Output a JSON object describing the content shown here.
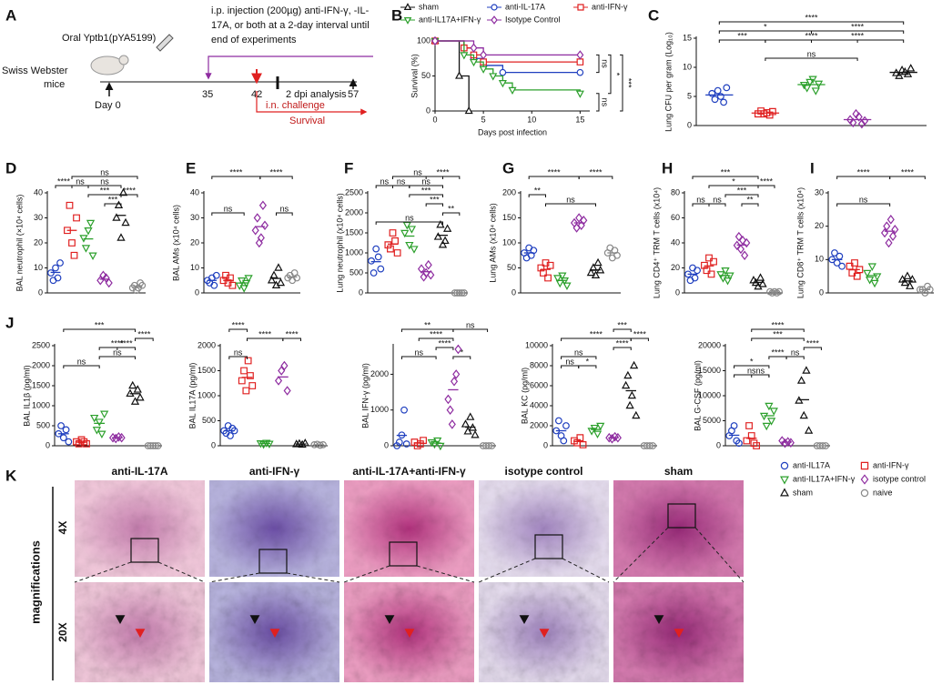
{
  "schematic": {
    "panel": "A",
    "oral": "Oral Yptb1(pYA5199)",
    "strain": "Swiss Webster",
    "mice": "mice",
    "day0": "Day 0",
    "injection": [
      "i.p. injection (200µg) anti-IFN-γ, -IL-",
      "17A, or both at a 2-day interval until",
      "end of experiments"
    ],
    "d35": "35",
    "d42": "42",
    "analysis": "2 dpi analysis",
    "d57": "57",
    "challenge": "i.n. challenge",
    "survival": "Survival"
  },
  "legend": [
    {
      "name": "anti-IL17A",
      "color": "#1f3fbf",
      "marker": "circle"
    },
    {
      "name": "anti-IFN-γ",
      "color": "#e02020",
      "marker": "square"
    },
    {
      "name": "anti-IL17A+IFN-γ",
      "color": "#2ca02c",
      "marker": "triangle-down"
    },
    {
      "name": "isotype control",
      "color": "#8e2ca0",
      "marker": "diamond"
    },
    {
      "name": "sham",
      "color": "#111111",
      "marker": "triangle-up"
    },
    {
      "name": "naive",
      "color": "#888888",
      "marker": "circle"
    }
  ],
  "chart_data": [
    {
      "type": "survival",
      "panel": "B",
      "xlabel": "Days post infection",
      "ylabel": "Survival (%)",
      "xlim": [
        0,
        16
      ],
      "xticks": [
        0,
        5,
        10,
        15
      ],
      "ylim": [
        0,
        100
      ],
      "yticks": [
        0,
        50,
        100
      ],
      "step": true,
      "series": [
        {
          "name": "sham",
          "color": "#111111",
          "marker": "triangle-up",
          "x": [
            0,
            2.5,
            3.5
          ],
          "values": [
            100,
            50,
            0
          ]
        },
        {
          "name": "anti-IL-17A",
          "color": "#1f3fbf",
          "marker": "circle",
          "x": [
            0,
            3,
            4,
            5,
            7,
            15
          ],
          "values": [
            100,
            90,
            75,
            65,
            55,
            55
          ]
        },
        {
          "name": "anti-IFN-γ",
          "color": "#e02020",
          "marker": "square",
          "x": [
            0,
            3,
            4,
            5,
            15
          ],
          "values": [
            100,
            90,
            80,
            70,
            70
          ]
        },
        {
          "name": "anti-IL17A+IFN-γ",
          "color": "#2ca02c",
          "marker": "triangle-down",
          "x": [
            0,
            3,
            4,
            5,
            6,
            7,
            8,
            15
          ],
          "values": [
            100,
            80,
            70,
            60,
            50,
            40,
            30,
            25
          ]
        },
        {
          "name": "Isotype Control",
          "color": "#8e2ca0",
          "marker": "diamond",
          "x": [
            0,
            4,
            5,
            15
          ],
          "values": [
            100,
            90,
            80,
            80
          ]
        }
      ],
      "annotations": [
        "ns",
        "*",
        "***",
        "ns"
      ]
    },
    {
      "type": "dotplot",
      "panel": "C",
      "ylabel": "Lung CFU per gram (Log₁₀)",
      "ylim": [
        0,
        15
      ],
      "yticks": [
        0,
        5,
        10,
        15
      ],
      "series": [
        {
          "values": [
            5.5,
            4.5,
            6,
            5,
            4,
            6.5
          ]
        },
        {
          "values": [
            2,
            2.5,
            2,
            2.2,
            1.8,
            2.4
          ]
        },
        {
          "values": [
            7,
            6.5,
            7.5,
            8,
            6,
            7.2
          ]
        },
        {
          "values": [
            1,
            0.5,
            2,
            1.5,
            0.3,
            0.8
          ]
        },
        {
          "values": [
            9,
            8.5,
            9.5,
            9.2,
            8.8,
            9.8
          ]
        }
      ],
      "annotations": [
        "****",
        "*",
        "****",
        "****",
        "***",
        "****",
        "ns"
      ]
    },
    {
      "type": "dotplot",
      "panel": "D",
      "ylabel": "BAL neutrophil (×10⁴ cells)",
      "ylim": [
        0,
        40
      ],
      "yticks": [
        0,
        10,
        20,
        30,
        40
      ],
      "series": [
        {
          "values": [
            8,
            5,
            10,
            6,
            12
          ]
        },
        {
          "values": [
            25,
            35,
            20,
            15,
            30
          ]
        },
        {
          "values": [
            22,
            18,
            25,
            28,
            15
          ]
        },
        {
          "values": [
            5,
            7,
            6,
            4
          ]
        },
        {
          "values": [
            30,
            35,
            22,
            40,
            28
          ]
        },
        {
          "values": [
            2,
            3,
            1,
            2,
            4,
            3
          ]
        }
      ],
      "annotations": [
        "ns",
        "****",
        "ns",
        "ns",
        "***",
        "***",
        "****"
      ]
    },
    {
      "type": "dotplot",
      "panel": "E",
      "ylabel": "BAL AMs (x10⁴ cells)",
      "ylim": [
        0,
        40
      ],
      "yticks": [
        0,
        10,
        20,
        30,
        40
      ],
      "series": [
        {
          "values": [
            5,
            4,
            6,
            3,
            7
          ]
        },
        {
          "values": [
            5,
            7,
            4,
            6,
            3
          ]
        },
        {
          "values": [
            3,
            5,
            2,
            4,
            6
          ]
        },
        {
          "values": [
            25,
            30,
            20,
            22,
            35,
            27
          ]
        },
        {
          "values": [
            5,
            7,
            3,
            10,
            4
          ]
        },
        {
          "values": [
            6,
            7,
            5,
            8,
            6
          ]
        }
      ],
      "annotations": [
        "****",
        "****",
        "ns",
        "ns"
      ]
    },
    {
      "type": "dotplot",
      "panel": "F",
      "ylabel": "Lung neutrophil (x10⁴ cells)",
      "ylim": [
        0,
        2500
      ],
      "yticks": [
        0,
        500,
        1000,
        1500,
        2000,
        2500
      ],
      "series": [
        {
          "values": [
            800,
            500,
            1100,
            900,
            600
          ]
        },
        {
          "values": [
            1200,
            1100,
            1500,
            1300,
            1000
          ]
        },
        {
          "values": [
            1500,
            1700,
            1200,
            1600,
            1100
          ]
        },
        {
          "values": [
            600,
            400,
            500,
            700,
            450
          ]
        },
        {
          "values": [
            1400,
            1700,
            1200,
            1300,
            1600
          ]
        },
        {
          "values": [
            0,
            0,
            0,
            0,
            0
          ]
        }
      ],
      "annotations": [
        "ns",
        "ns",
        "ns",
        "****",
        "ns",
        "***",
        "***",
        "**",
        "ns"
      ]
    },
    {
      "type": "dotplot",
      "panel": "G",
      "ylabel": "Lung AMs (x10⁴ cells)",
      "ylim": [
        0,
        200
      ],
      "yticks": [
        0,
        50,
        100,
        150,
        200
      ],
      "series": [
        {
          "values": [
            80,
            70,
            90,
            75,
            85
          ]
        },
        {
          "values": [
            50,
            40,
            60,
            30,
            55
          ]
        },
        {
          "values": [
            30,
            20,
            35,
            25,
            15
          ]
        },
        {
          "values": [
            140,
            130,
            150,
            135,
            145
          ]
        },
        {
          "values": [
            40,
            50,
            35,
            60,
            45
          ]
        },
        {
          "values": [
            80,
            90,
            70,
            85,
            75
          ]
        }
      ],
      "annotations": [
        "****",
        "****",
        "**",
        "ns"
      ]
    },
    {
      "type": "dotplot",
      "panel": "H",
      "ylabel": "Lung CD4⁺ TRM T cells (x10⁴)",
      "ylim": [
        0,
        80
      ],
      "yticks": [
        0,
        20,
        40,
        60,
        80
      ],
      "series": [
        {
          "values": [
            15,
            10,
            20,
            12,
            18
          ]
        },
        {
          "values": [
            22,
            18,
            28,
            15,
            25
          ]
        },
        {
          "values": [
            15,
            12,
            18,
            10,
            14
          ]
        },
        {
          "values": [
            38,
            45,
            35,
            42,
            30,
            40
          ]
        },
        {
          "values": [
            10,
            8,
            5,
            12,
            7
          ]
        },
        {
          "values": [
            1,
            0,
            1,
            0,
            1
          ]
        }
      ],
      "annotations": [
        "***",
        "*",
        "****",
        "ns",
        "ns",
        "***",
        "**"
      ]
    },
    {
      "type": "dotplot",
      "panel": "I",
      "ylabel": "Lung CD8⁺ TRM T cells (x10⁴)",
      "ylim": [
        0,
        30
      ],
      "yticks": [
        0,
        10,
        20,
        30
      ],
      "series": [
        {
          "values": [
            10,
            12,
            9,
            11,
            8
          ]
        },
        {
          "values": [
            8,
            6,
            9,
            5,
            7
          ]
        },
        {
          "values": [
            6,
            4,
            8,
            3,
            5
          ]
        },
        {
          "values": [
            18,
            20,
            15,
            22,
            17,
            19
          ]
        },
        {
          "values": [
            4,
            3,
            5,
            2,
            4
          ]
        },
        {
          "values": [
            1,
            1,
            0,
            2,
            1
          ]
        }
      ],
      "annotations": [
        "****",
        "****",
        "ns"
      ]
    },
    {
      "type": "dotplot",
      "panel": "J",
      "ylabel": "BAL IL1β (pg/ml)",
      "ylim": [
        0,
        2500
      ],
      "yticks": [
        0,
        500,
        1000,
        1500,
        2000,
        2500
      ],
      "series": [
        {
          "values": [
            300,
            500,
            200,
            400,
            100
          ]
        },
        {
          "values": [
            100,
            50,
            150,
            100,
            50
          ]
        },
        {
          "values": [
            700,
            400,
            600,
            300,
            800
          ]
        },
        {
          "values": [
            200,
            180,
            220,
            200
          ]
        },
        {
          "values": [
            1300,
            1500,
            1100,
            1400,
            1200
          ]
        },
        {
          "values": [
            0,
            0,
            0,
            0,
            0
          ]
        }
      ],
      "annotations": [
        "***",
        "****",
        "****",
        "****",
        "ns",
        "ns"
      ]
    },
    {
      "type": "dotplot",
      "ylabel": "BAL IL17A (pg/ml)",
      "ylim": [
        0,
        2000
      ],
      "yticks": [
        0,
        500,
        1000,
        1500,
        2000
      ],
      "series": [
        {
          "values": [
            300,
            250,
            400,
            200,
            350,
            300
          ]
        },
        {
          "values": [
            1300,
            1500,
            1100,
            1700,
            1400,
            1200
          ]
        },
        {
          "values": [
            50,
            30,
            60,
            40
          ]
        },
        {
          "values": [
            1300,
            1500,
            1600,
            1100
          ]
        },
        {
          "values": [
            30,
            40,
            20,
            50
          ]
        },
        {
          "values": [
            20,
            30,
            10,
            20
          ]
        }
      ],
      "annotations": [
        "****",
        "****",
        "****",
        "ns"
      ]
    },
    {
      "type": "dotplot",
      "ylabel": "BAL IFN-γ (pg/ml)",
      "ylim": [
        0,
        2800
      ],
      "yticks": [
        0,
        1000,
        2000
      ],
      "series": [
        {
          "values": [
            0,
            100,
            300,
            1000,
            50
          ]
        },
        {
          "values": [
            100,
            0,
            50,
            150
          ]
        },
        {
          "values": [
            100,
            50,
            150,
            0
          ]
        },
        {
          "values": [
            1300,
            1000,
            600,
            1800,
            2000,
            2700
          ]
        },
        {
          "values": [
            600,
            400,
            800,
            500,
            300
          ]
        },
        {
          "values": [
            0,
            0,
            0,
            0
          ]
        }
      ],
      "annotations": [
        "**",
        "****",
        "ns",
        "ns",
        "****",
        "*"
      ]
    },
    {
      "type": "dotplot",
      "ylabel": "BAL KC (pg/ml)",
      "ylim": [
        0,
        10000
      ],
      "yticks": [
        0,
        2000,
        4000,
        6000,
        8000,
        10000
      ],
      "series": [
        {
          "values": [
            1500,
            2500,
            1000,
            500,
            2000
          ]
        },
        {
          "values": [
            500,
            300,
            800,
            100
          ]
        },
        {
          "values": [
            1500,
            1800,
            1200,
            2000
          ]
        },
        {
          "values": [
            800,
            700,
            900,
            800
          ]
        },
        {
          "values": [
            6000,
            7000,
            4000,
            5000,
            8000,
            3000
          ]
        },
        {
          "values": [
            0,
            0,
            0,
            0
          ]
        }
      ],
      "annotations": [
        "***",
        "****",
        "****",
        "****",
        "ns",
        "*",
        "ns"
      ]
    },
    {
      "type": "dotplot",
      "ylabel": "BAL G-CSF (pg/ml)",
      "ylim": [
        0,
        20000
      ],
      "yticks": [
        0,
        5000,
        10000,
        15000,
        20000
      ],
      "series": [
        {
          "values": [
            2000,
            3000,
            4000,
            1000,
            500
          ]
        },
        {
          "values": [
            1000,
            4000,
            2000,
            500,
            0
          ]
        },
        {
          "values": [
            6000,
            4000,
            8000,
            5000,
            7000
          ]
        },
        {
          "values": [
            1000,
            500,
            800,
            600
          ]
        },
        {
          "values": [
            9000,
            13000,
            6000,
            15000,
            3000
          ]
        },
        {
          "values": [
            0,
            0,
            0,
            0
          ]
        }
      ],
      "annotations": [
        "****",
        "***",
        "****",
        "ns",
        "*",
        "ns",
        "****",
        "ns"
      ]
    }
  ],
  "histology": {
    "panel": "K",
    "columns": [
      "anti-IL-17A",
      "anti-IFN-γ",
      "anti-IL-17A+anti-IFN-γ",
      "isotype control",
      "sham"
    ],
    "side": "magnifications",
    "rows": [
      "4X",
      "20X"
    ]
  }
}
